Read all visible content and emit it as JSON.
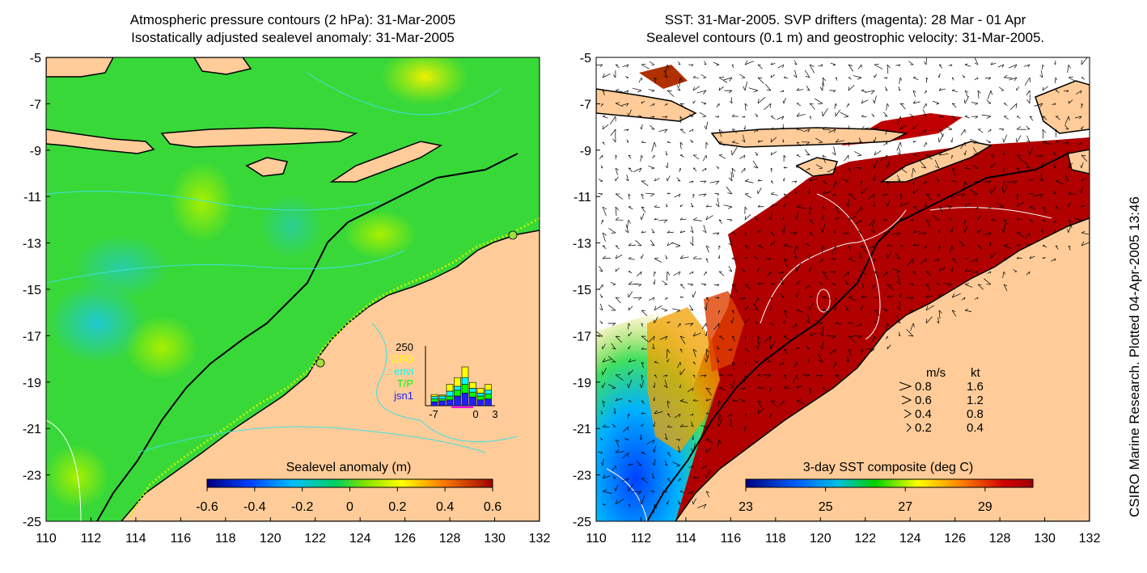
{
  "left_panel": {
    "title_line1": "Atmospheric pressure contours (2 hPa): 31-Mar-2005",
    "title_line2": "Isostatically adjusted sealevel anomaly: 31-Mar-2005",
    "y_ticks": [
      "-5",
      "-7",
      "-9",
      "-11",
      "-13",
      "-15",
      "-17",
      "-19",
      "-21",
      "-23",
      "-25"
    ],
    "x_ticks": [
      "110",
      "112",
      "114",
      "116",
      "118",
      "120",
      "122",
      "124",
      "126",
      "128",
      "130",
      "132"
    ],
    "colorbar": {
      "label": "Sealevel anomaly (m)",
      "ticks": [
        "-0.6",
        "-0.4",
        "-0.2",
        "0",
        "0.2",
        "0.4",
        "0.6"
      ]
    },
    "inset": {
      "max_label": "250",
      "legend": [
        {
          "name": "GFO",
          "color": "#ffff00"
        },
        {
          "name": "envi",
          "color": "#00ffff"
        },
        {
          "name": "T/P",
          "color": "#00ff00"
        },
        {
          "name": "jsn1",
          "color": "#2020ff"
        }
      ],
      "x_ticks": [
        "-7",
        "0",
        "3"
      ]
    }
  },
  "right_panel": {
    "title_line1": "SST: 31-Mar-2005. SVP drifters (magenta): 28 Mar - 01 Apr",
    "title_line2": "Sealevel contours (0.1 m) and geostrophic velocity: 31-Mar-2005.",
    "y_ticks": [
      "-5",
      "-7",
      "-9",
      "-11",
      "-13",
      "-15",
      "-17",
      "-19",
      "-21",
      "-23",
      "-25"
    ],
    "x_ticks": [
      "110",
      "112",
      "114",
      "116",
      "118",
      "120",
      "122",
      "124",
      "126",
      "128",
      "130",
      "132"
    ],
    "colorbar": {
      "label": "3-day SST composite (deg C)",
      "ticks": [
        "23",
        "25",
        "27",
        "29"
      ]
    },
    "velocity_key": {
      "header_ms": "m/s",
      "header_kt": "kt",
      "rows": [
        {
          "ms": "0.8",
          "kt": "1.6"
        },
        {
          "ms": "0.6",
          "kt": "1.2"
        },
        {
          "ms": "0.4",
          "kt": "0.8"
        },
        {
          "ms": "0.2",
          "kt": "0.4"
        }
      ]
    }
  },
  "credit": "CSIRO Marine Research. Plotted 04-Apr-2005 13:46"
}
